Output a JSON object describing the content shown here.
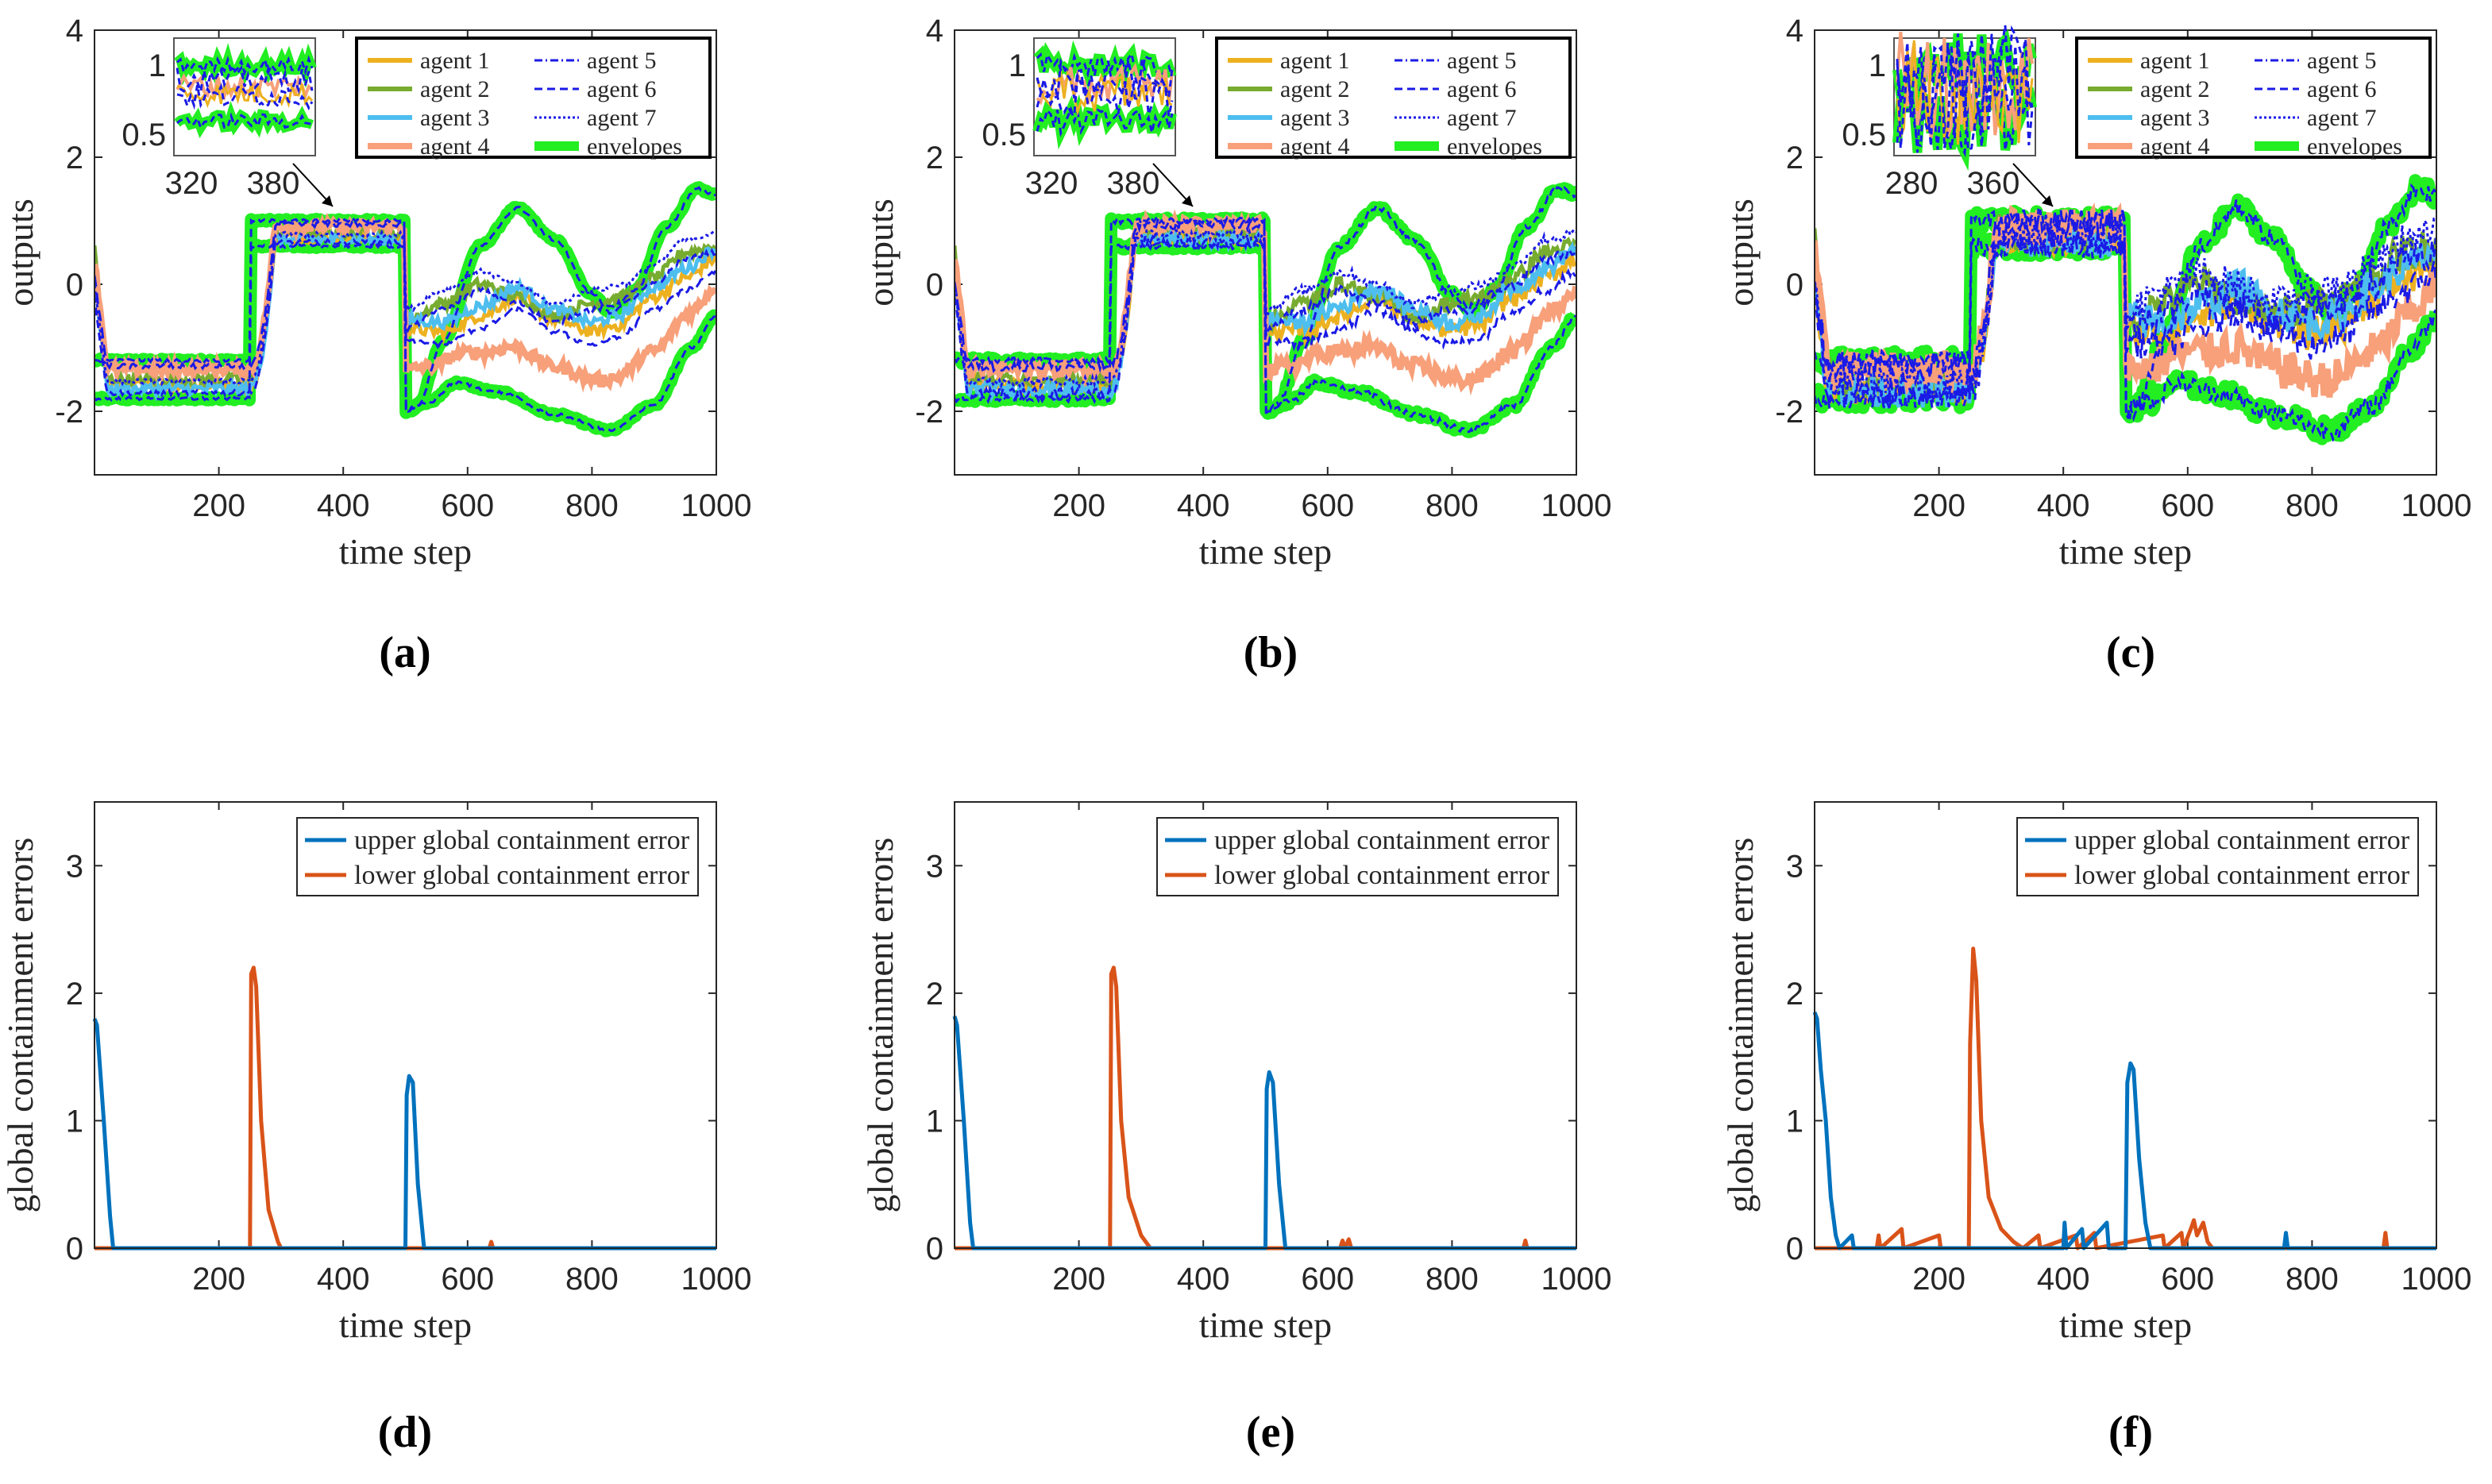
{
  "figure_caption_labels": [
    "(a)",
    "(b)",
    "(c)",
    "(d)",
    "(e)",
    "(f)"
  ],
  "colors": {
    "agent1": "#EDB120",
    "agent2": "#77AC30",
    "agent3": "#4DBEEE",
    "agent4": "#F7A07A",
    "agent_dashed": "#1A1AE6",
    "envelope": "#22EE22",
    "upper_error": "#0072BD",
    "lower_error": "#D95319"
  },
  "chart_data": [
    {
      "id": "a",
      "type": "line",
      "caption": "(a)",
      "xlabel": "time step",
      "ylabel": "outputs",
      "xlim": [
        0,
        1000
      ],
      "ylim": [
        -3,
        4
      ],
      "xticks": [
        200,
        400,
        600,
        800,
        1000
      ],
      "yticks": [
        -2,
        0,
        2,
        4
      ],
      "noise": 0.04,
      "legend": [
        "agent 1",
        "agent 2",
        "agent 3",
        "agent 4",
        "agent 5",
        "agent 6",
        "agent 7",
        "envelopes"
      ],
      "inset": {
        "xticks": [
          320,
          380
        ],
        "yticks": [
          0.5,
          1
        ]
      },
      "series_description": {
        "upper_envelope": [
          [
            0,
            -1.2
          ],
          [
            250,
            -1.2
          ],
          [
            250,
            1.0
          ],
          [
            500,
            1.0
          ],
          [
            500,
            -2.0
          ],
          [
            680,
            1.2
          ],
          [
            830,
            -0.5
          ],
          [
            970,
            1.5
          ],
          [
            1000,
            1.4
          ]
        ],
        "lower_envelope": [
          [
            0,
            -1.8
          ],
          [
            250,
            -1.8
          ],
          [
            250,
            0.6
          ],
          [
            500,
            0.6
          ],
          [
            500,
            -2.0
          ],
          [
            580,
            -1.5
          ],
          [
            830,
            -2.3
          ],
          [
            1000,
            -0.5
          ]
        ]
      }
    },
    {
      "id": "b",
      "type": "line",
      "caption": "(b)",
      "xlabel": "time step",
      "ylabel": "outputs",
      "xlim": [
        0,
        1000
      ],
      "ylim": [
        -3,
        4
      ],
      "xticks": [
        200,
        400,
        600,
        800,
        1000
      ],
      "yticks": [
        -2,
        0,
        2,
        4
      ],
      "noise": 0.08,
      "legend": [
        "agent 1",
        "agent 2",
        "agent 3",
        "agent 4",
        "agent 5",
        "agent 6",
        "agent 7",
        "envelopes"
      ],
      "inset": {
        "xticks": [
          320,
          380
        ],
        "yticks": [
          0.5,
          1
        ]
      }
    },
    {
      "id": "c",
      "type": "line",
      "caption": "(c)",
      "xlabel": "time step",
      "ylabel": "outputs",
      "xlim": [
        0,
        1000
      ],
      "ylim": [
        -3,
        4
      ],
      "xticks": [
        200,
        400,
        600,
        800,
        1000
      ],
      "yticks": [
        -2,
        0,
        2,
        4
      ],
      "noise": 0.25,
      "legend": [
        "agent 1",
        "agent 2",
        "agent 3",
        "agent 4",
        "agent 5",
        "agent 6",
        "agent 7",
        "envelopes"
      ],
      "inset": {
        "xticks": [
          280,
          360
        ],
        "yticks": [
          0.5,
          1
        ]
      }
    },
    {
      "id": "d",
      "type": "line",
      "caption": "(d)",
      "xlabel": "time step",
      "ylabel": "global containment errors",
      "xlim": [
        0,
        1000
      ],
      "ylim": [
        0,
        3.5
      ],
      "xticks": [
        200,
        400,
        600,
        800,
        1000
      ],
      "yticks": [
        0,
        1,
        2,
        3
      ],
      "legend": [
        "upper global containment error",
        "lower global containment error"
      ],
      "series": [
        {
          "name": "upper global containment error",
          "points": [
            [
              0,
              1.8
            ],
            [
              4,
              1.75
            ],
            [
              15,
              1.0
            ],
            [
              25,
              0.25
            ],
            [
              30,
              0
            ],
            [
              500,
              0
            ],
            [
              502,
              1.2
            ],
            [
              506,
              1.35
            ],
            [
              512,
              1.3
            ],
            [
              520,
              0.5
            ],
            [
              530,
              0
            ],
            [
              1000,
              0
            ]
          ]
        },
        {
          "name": "lower global containment error",
          "points": [
            [
              0,
              0
            ],
            [
              250,
              0
            ],
            [
              252,
              2.15
            ],
            [
              256,
              2.2
            ],
            [
              260,
              2.05
            ],
            [
              268,
              1.0
            ],
            [
              280,
              0.3
            ],
            [
              295,
              0.05
            ],
            [
              300,
              0
            ],
            [
              635,
              0
            ],
            [
              638,
              0.05
            ],
            [
              641,
              0
            ],
            [
              1000,
              0
            ]
          ]
        }
      ]
    },
    {
      "id": "e",
      "type": "line",
      "caption": "(e)",
      "xlabel": "time step",
      "ylabel": "global containment errors",
      "xlim": [
        0,
        1000
      ],
      "ylim": [
        0,
        3.5
      ],
      "xticks": [
        200,
        400,
        600,
        800,
        1000
      ],
      "yticks": [
        0,
        1,
        2,
        3
      ],
      "legend": [
        "upper global containment error",
        "lower global containment error"
      ],
      "series": [
        {
          "name": "upper global containment error",
          "points": [
            [
              0,
              1.82
            ],
            [
              4,
              1.75
            ],
            [
              15,
              1.0
            ],
            [
              25,
              0.2
            ],
            [
              30,
              0
            ],
            [
              500,
              0
            ],
            [
              502,
              1.25
            ],
            [
              506,
              1.38
            ],
            [
              512,
              1.3
            ],
            [
              522,
              0.5
            ],
            [
              532,
              0
            ],
            [
              1000,
              0
            ]
          ]
        },
        {
          "name": "lower global containment error",
          "points": [
            [
              0,
              0
            ],
            [
              250,
              0
            ],
            [
              252,
              2.15
            ],
            [
              256,
              2.2
            ],
            [
              260,
              2.05
            ],
            [
              268,
              1.0
            ],
            [
              280,
              0.4
            ],
            [
              300,
              0.1
            ],
            [
              315,
              0
            ],
            [
              620,
              0
            ],
            [
              624,
              0.06
            ],
            [
              628,
              0
            ],
            [
              634,
              0.07
            ],
            [
              638,
              0
            ],
            [
              915,
              0
            ],
            [
              918,
              0.06
            ],
            [
              921,
              0
            ],
            [
              1000,
              0
            ]
          ]
        }
      ]
    },
    {
      "id": "f",
      "type": "line",
      "caption": "(f)",
      "xlabel": "time step",
      "ylabel": "global containment errors",
      "xlim": [
        0,
        1000
      ],
      "ylim": [
        0,
        3.5
      ],
      "xticks": [
        200,
        400,
        600,
        800,
        1000
      ],
      "yticks": [
        0,
        1,
        2,
        3
      ],
      "legend": [
        "upper global containment error",
        "lower global containment error"
      ],
      "series": [
        {
          "name": "upper global containment error",
          "points": [
            [
              0,
              1.85
            ],
            [
              4,
              1.8
            ],
            [
              10,
              1.4
            ],
            [
              18,
              1.0
            ],
            [
              26,
              0.4
            ],
            [
              34,
              0.1
            ],
            [
              40,
              0
            ],
            [
              60,
              0.1
            ],
            [
              63,
              0
            ],
            [
              400,
              0
            ],
            [
              402,
              0.2
            ],
            [
              405,
              0
            ],
            [
              430,
              0.15
            ],
            [
              433,
              0
            ],
            [
              470,
              0.2
            ],
            [
              473,
              0
            ],
            [
              500,
              0
            ],
            [
              503,
              1.3
            ],
            [
              508,
              1.45
            ],
            [
              513,
              1.4
            ],
            [
              522,
              0.7
            ],
            [
              532,
              0.2
            ],
            [
              540,
              0
            ],
            [
              755,
              0
            ],
            [
              758,
              0.12
            ],
            [
              761,
              0
            ],
            [
              1000,
              0
            ]
          ]
        },
        {
          "name": "lower global containment error",
          "points": [
            [
              0,
              0
            ],
            [
              100,
              0
            ],
            [
              103,
              0.1
            ],
            [
              106,
              0
            ],
            [
              140,
              0.15
            ],
            [
              143,
              0
            ],
            [
              200,
              0.1
            ],
            [
              203,
              0
            ],
            [
              248,
              0
            ],
            [
              250,
              1.6
            ],
            [
              255,
              2.35
            ],
            [
              260,
              2.1
            ],
            [
              268,
              1.0
            ],
            [
              280,
              0.4
            ],
            [
              300,
              0.15
            ],
            [
              320,
              0.05
            ],
            [
              335,
              0
            ],
            [
              360,
              0.1
            ],
            [
              363,
              0
            ],
            [
              420,
              0.1
            ],
            [
              423,
              0
            ],
            [
              450,
              0.12
            ],
            [
              453,
              0
            ],
            [
              560,
              0.1
            ],
            [
              563,
              0
            ],
            [
              590,
              0.12
            ],
            [
              593,
              0
            ],
            [
              605,
              0.15
            ],
            [
              610,
              0.22
            ],
            [
              615,
              0.1
            ],
            [
              625,
              0.2
            ],
            [
              632,
              0.05
            ],
            [
              640,
              0
            ],
            [
              915,
              0
            ],
            [
              918,
              0.12
            ],
            [
              921,
              0
            ],
            [
              1000,
              0
            ]
          ]
        }
      ]
    }
  ]
}
